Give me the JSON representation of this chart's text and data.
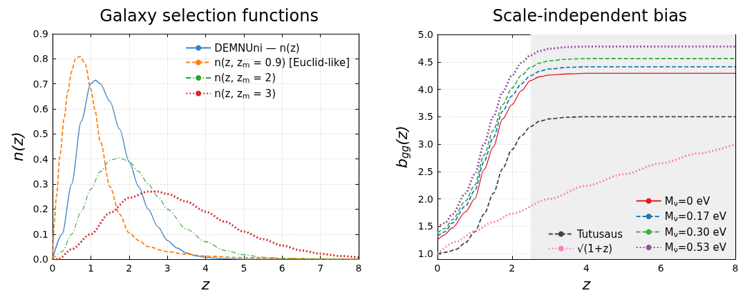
{
  "chart_data": [
    {
      "type": "line",
      "title": "Galaxy selection functions",
      "xlabel": "z",
      "ylabel": "n(z)",
      "xlim": [
        0,
        8
      ],
      "xticks": [
        0,
        1,
        2,
        3,
        4,
        5,
        6,
        7,
        8
      ],
      "ylim": [
        0,
        0.9
      ],
      "yticks": [
        {
          "value": 0,
          "label": "0.0"
        },
        0.1,
        0.2,
        0.3,
        0.4,
        0.5,
        0.6,
        0.7,
        0.8,
        0.9
      ],
      "grid": true,
      "legend": "top right",
      "series": [
        {
          "name": "DEMNUni — n(z)",
          "color": "#3a7fc1",
          "line_style": "solid",
          "x": [
            0,
            0.25,
            0.5,
            0.75,
            1,
            1.12,
            1.25,
            1.5,
            1.75,
            2,
            2.25,
            2.5,
            2.75,
            3,
            3.25,
            3.5,
            3.75,
            4,
            4.5,
            5,
            8
          ],
          "values": [
            0,
            0.1,
            0.3,
            0.55,
            0.7,
            0.715,
            0.7,
            0.63,
            0.52,
            0.39,
            0.29,
            0.2,
            0.13,
            0.075,
            0.045,
            0.025,
            0.013,
            0.007,
            0.002,
            0,
            0
          ]
        },
        {
          "name": "n(z, z$_{m}$ = 0.9) [Euclid-like]",
          "color": "#ff7f0e",
          "line_style": "dashed",
          "x": [
            0,
            0.05,
            0.1,
            0.2,
            0.3,
            0.4,
            0.5,
            0.6,
            0.72,
            0.85,
            1,
            1.1,
            1.25,
            1.5,
            1.75,
            2,
            2.25,
            2.5,
            3,
            3.5,
            4,
            5,
            6,
            7,
            8
          ],
          "values": [
            0,
            0.15,
            0.25,
            0.42,
            0.56,
            0.67,
            0.75,
            0.8,
            0.81,
            0.78,
            0.68,
            0.6,
            0.47,
            0.29,
            0.18,
            0.105,
            0.075,
            0.05,
            0.03,
            0.02,
            0.012,
            0.006,
            0.003,
            0.001,
            0
          ]
        },
        {
          "name": "n(z, z$_{m}$ = 2)",
          "color": "#2ca02c",
          "line_style": "dashdot",
          "x": [
            0,
            0.25,
            0.5,
            0.75,
            1,
            1.25,
            1.5,
            1.75,
            2,
            2.25,
            2.5,
            2.75,
            3,
            3.5,
            4,
            4.5,
            5,
            5.5,
            6,
            7,
            8
          ],
          "values": [
            0,
            0.03,
            0.1,
            0.19,
            0.28,
            0.35,
            0.395,
            0.405,
            0.39,
            0.35,
            0.3,
            0.25,
            0.2,
            0.12,
            0.07,
            0.035,
            0.018,
            0.008,
            0.004,
            0.001,
            0
          ]
        },
        {
          "name": "n(z, z$_{m}$ = 3)",
          "color": "#d62728",
          "line_style": "dotted",
          "x": [
            0,
            0.15,
            0.5,
            1,
            1.5,
            2,
            2.5,
            2.75,
            3,
            3.5,
            4,
            4.5,
            5,
            5.5,
            6,
            6.5,
            7,
            7.5,
            8
          ],
          "values": [
            0,
            0,
            0.04,
            0.1,
            0.185,
            0.245,
            0.27,
            0.27,
            0.26,
            0.23,
            0.19,
            0.15,
            0.11,
            0.08,
            0.055,
            0.035,
            0.022,
            0.013,
            0.007
          ]
        }
      ]
    },
    {
      "type": "line",
      "title": "Scale-independent bias",
      "xlabel": "z",
      "ylabel": "b$_{gg}$(z)",
      "xlim": [
        0,
        8
      ],
      "xticks": [
        0,
        2,
        4,
        6,
        8
      ],
      "ylim": [
        0.9,
        5.0
      ],
      "yticks": [
        {
          "value": 1,
          "label": "1.0"
        },
        1.5,
        {
          "value": 2,
          "label": "2.0"
        },
        2.5,
        {
          "value": 3,
          "label": "3.0"
        },
        3.5,
        {
          "value": 4,
          "label": "4.0"
        },
        4.5,
        {
          "value": 5,
          "label": "5.0"
        }
      ],
      "grid": true,
      "legend": "bottom right",
      "bands": [
        {
          "axis": "x",
          "from": 2.5,
          "to": 8,
          "color": "#efefef"
        }
      ],
      "series": [
        {
          "name": "M$_{ν}$=0 eV",
          "color": "#e41a1c",
          "line_style": "solid",
          "x": [
            0,
            0.18,
            0.4,
            0.75,
            1,
            1.25,
            1.5,
            1.75,
            2,
            2.25,
            2.5,
            2.75,
            3,
            3.5,
            4,
            8
          ],
          "values": [
            1.25,
            1.34,
            1.47,
            1.76,
            2.0,
            2.53,
            2.95,
            3.46,
            3.72,
            3.97,
            4.16,
            4.23,
            4.26,
            4.28,
            4.29,
            4.29
          ]
        },
        {
          "name": "M$_{ν}$=0.17 eV",
          "color": "#1f77b4",
          "line_style": "dashed",
          "x": [
            0,
            0.2,
            0.4,
            0.75,
            1,
            1.25,
            1.5,
            1.75,
            2,
            2.25,
            2.5,
            2.75,
            3,
            3.5,
            4,
            8
          ],
          "values": [
            1.32,
            1.4,
            1.56,
            1.87,
            2.15,
            2.68,
            3.12,
            3.6,
            3.88,
            4.1,
            4.25,
            4.33,
            4.37,
            4.4,
            4.41,
            4.41
          ]
        },
        {
          "name": "M$_{ν}$=0.30 eV",
          "color": "#3cb043",
          "line_style": "dashed",
          "x": [
            0,
            0.2,
            0.4,
            0.75,
            1,
            1.25,
            1.5,
            1.75,
            2,
            2.25,
            2.5,
            2.75,
            3,
            3.5,
            4,
            8
          ],
          "values": [
            1.38,
            1.46,
            1.62,
            1.96,
            2.25,
            2.8,
            3.25,
            3.72,
            4.02,
            4.25,
            4.4,
            4.48,
            4.52,
            4.55,
            4.56,
            4.56
          ]
        },
        {
          "name": "M$_{ν}$=0.53 eV",
          "color": "#984ea3",
          "line_style": "dotted",
          "x": [
            0,
            0.2,
            0.4,
            0.75,
            1,
            1.25,
            1.5,
            1.75,
            2,
            2.25,
            2.5,
            2.75,
            3,
            3.5,
            4,
            8
          ],
          "values": [
            1.48,
            1.56,
            1.72,
            2.1,
            2.45,
            3.0,
            3.5,
            3.95,
            4.25,
            4.48,
            4.62,
            4.7,
            4.74,
            4.77,
            4.78,
            4.78
          ]
        },
        {
          "name": "Tutusaus",
          "color": "#444444",
          "line_style": "dashed",
          "x": [
            0,
            0.25,
            0.5,
            0.75,
            1,
            1.25,
            1.5,
            1.75,
            2,
            2.25,
            2.5,
            2.75,
            3,
            3.5,
            4,
            8
          ],
          "values": [
            1.0,
            1.03,
            1.08,
            1.2,
            1.4,
            1.72,
            2.1,
            2.55,
            2.9,
            3.15,
            3.32,
            3.42,
            3.46,
            3.49,
            3.5,
            3.5
          ]
        },
        {
          "name": "√(1+z)",
          "color": "#f781bf",
          "line_style": "dotted",
          "x": [
            0,
            0.5,
            1,
            1.5,
            2,
            3,
            4,
            5,
            6,
            7,
            8
          ],
          "values": [
            1.0,
            1.22,
            1.41,
            1.58,
            1.73,
            2.0,
            2.24,
            2.45,
            2.65,
            2.83,
            3.0
          ]
        }
      ]
    }
  ]
}
